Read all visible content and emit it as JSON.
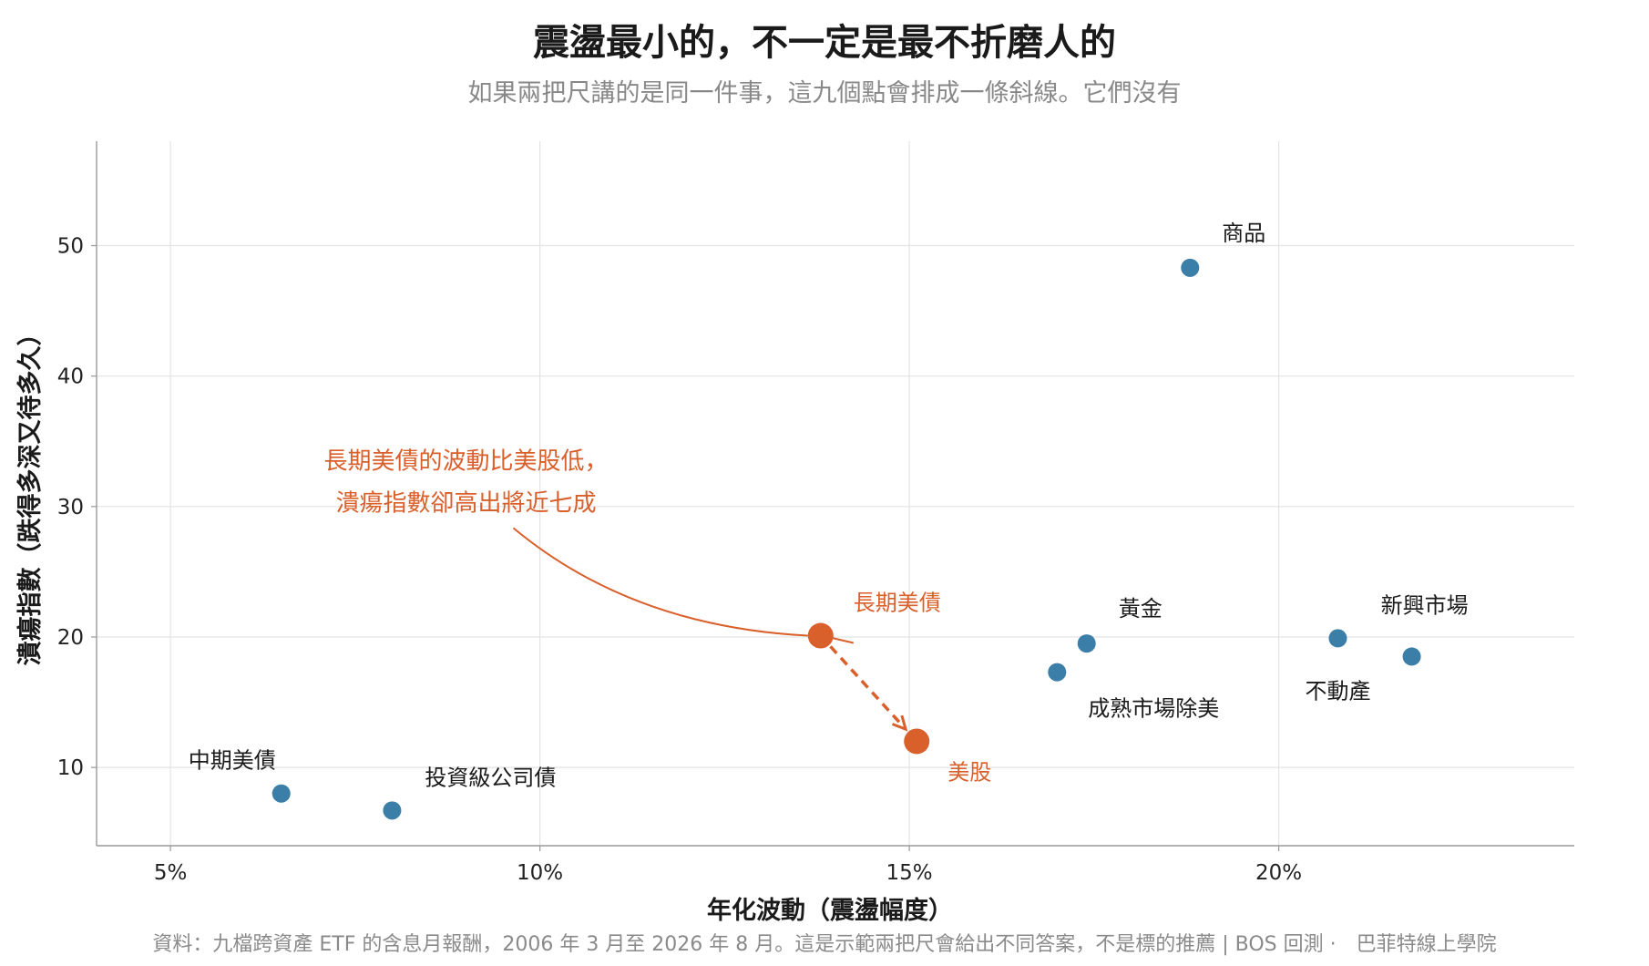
{
  "title": "震盪最小的，不一定是最不折磨人的",
  "subtitle": "如果兩把尺講的是同一件事，這九個點會排成一條斜線。它們沒有",
  "source": "資料：九檔跨資產 ETF 的含息月報酬，2006 年 3 月至 2026 年 8 月。這是示範兩把尺會給出不同答案，不是標的推薦 | BOS 回測 ·　巴菲特線上學院",
  "colors": {
    "normal": "#3b7ea8",
    "highlight": "#d95f2b",
    "grid": "#e3e3e3",
    "axis": "#999999"
  },
  "chart_data": {
    "type": "scatter",
    "xlabel": "年化波動（震盪幅度）",
    "ylabel": "潰瘍指數（跌得多深又待多久）",
    "xlim": [
      4.0,
      24.0
    ],
    "ylim": [
      4.0,
      58.0
    ],
    "xticks": [
      5,
      10,
      15,
      20
    ],
    "xtick_labels": [
      "5%",
      "10%",
      "15%",
      "20%"
    ],
    "yticks": [
      10,
      20,
      30,
      40,
      50
    ],
    "ytick_labels": [
      "10",
      "20",
      "30",
      "40",
      "50"
    ],
    "grid": true,
    "points": [
      {
        "name": "中期美債",
        "x": 6.5,
        "y": 8.0,
        "highlight": false,
        "label_dx": -6,
        "label_dy": -28,
        "anchor": "end"
      },
      {
        "name": "投資級公司債",
        "x": 8.0,
        "y": 6.7,
        "highlight": false,
        "label_dx": 36,
        "label_dy": -28,
        "anchor": "start"
      },
      {
        "name": "長期美債",
        "x": 13.8,
        "y": 20.1,
        "highlight": true,
        "label_dx": 36,
        "label_dy": -28,
        "anchor": "start"
      },
      {
        "name": "美股",
        "x": 15.1,
        "y": 12.0,
        "highlight": true,
        "label_dx": 34,
        "label_dy": 42,
        "anchor": "start"
      },
      {
        "name": "成熟市場除美",
        "x": 17.0,
        "y": 17.3,
        "highlight": false,
        "label_dx": 34,
        "label_dy": 48,
        "anchor": "start"
      },
      {
        "name": "黃金",
        "x": 17.4,
        "y": 19.5,
        "highlight": false,
        "label_dx": 35,
        "label_dy": -30,
        "anchor": "start"
      },
      {
        "name": "商品",
        "x": 18.8,
        "y": 48.3,
        "highlight": false,
        "label_dx": 35,
        "label_dy": -30,
        "anchor": "start"
      },
      {
        "name": "不動產",
        "x": 20.8,
        "y": 19.9,
        "highlight": false,
        "label_dx": 0,
        "label_dy": 66,
        "anchor": "middle"
      },
      {
        "name": "新興市場",
        "x": 21.8,
        "y": 18.5,
        "highlight": false,
        "label_dx": 14,
        "label_dy": -48,
        "anchor": "middle"
      }
    ],
    "arrow": {
      "from": "長期美債",
      "to": "美股",
      "style": "dashed"
    },
    "annotation": {
      "lines": [
        "長期美債的波動比美股低，",
        "潰瘍指數卻高出將近七成"
      ],
      "x": 9.0,
      "y": 31.5,
      "target": "長期美債"
    }
  }
}
